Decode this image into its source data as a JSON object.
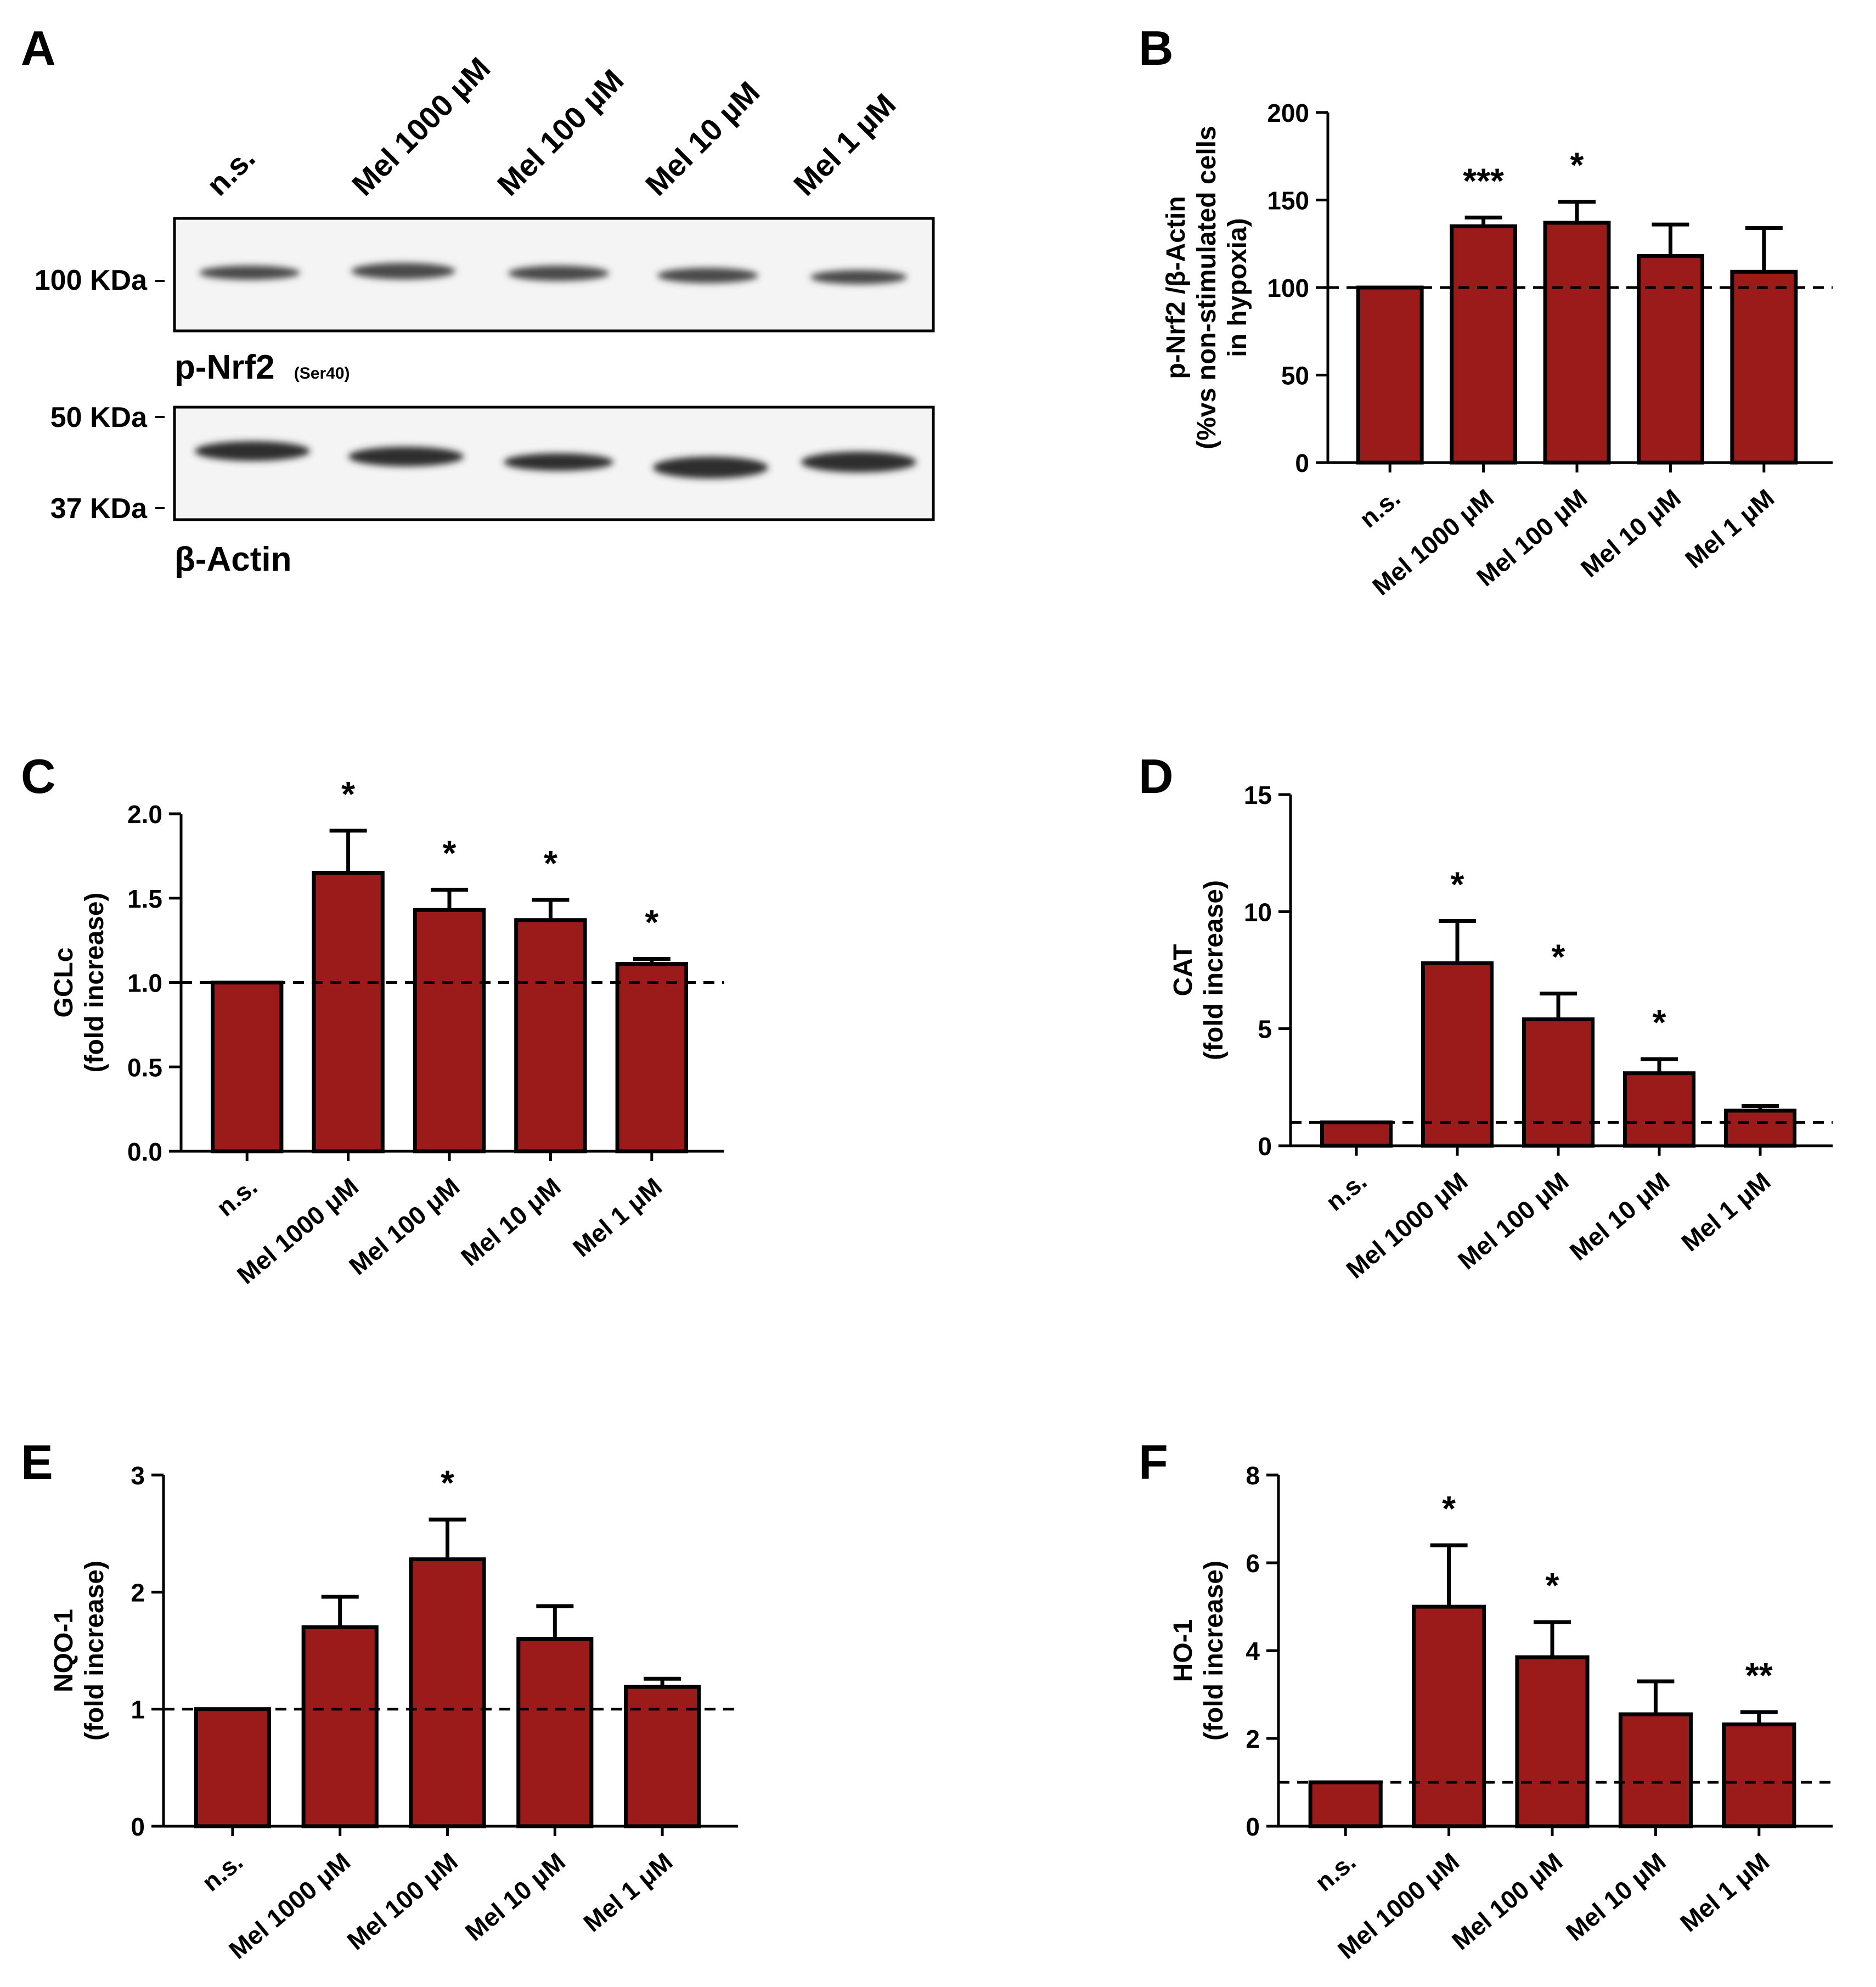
{
  "colors": {
    "bar": "#9b1b1b",
    "stroke": "#000000",
    "blot_bg": "#f4f4f4",
    "band": "#3a3a3a"
  },
  "panel_a": {
    "letter": "A",
    "lanes": [
      "n.s.",
      "Mel 1000 µM",
      "Mel 100 µM",
      "Mel 10 µM",
      "Mel 1 µM"
    ],
    "blot1": {
      "marker": "100 KDa",
      "protein": "p-Nrf2",
      "site": "(Ser40)"
    },
    "blot2": {
      "marker_top": "50 KDa",
      "marker_bottom": "37 KDa",
      "protein": "β-Actin"
    }
  },
  "chart_data": [
    {
      "id": "B",
      "type": "bar",
      "letter": "B",
      "categories": [
        "n.s.",
        "Mel 1000 μM",
        "Mel 100 μM",
        "Mel 10 μM",
        "Mel 1 μM"
      ],
      "values": [
        100,
        135,
        137,
        118,
        109
      ],
      "errors": [
        0,
        5,
        12,
        18,
        25
      ],
      "significance": [
        "",
        "***",
        "*",
        "",
        ""
      ],
      "ylabel": [
        "p-Nrf2 /β-Actin",
        "(%vs non-stimulated cells",
        "in hypoxia)"
      ],
      "ylim": [
        0,
        200
      ],
      "ticks": [
        0,
        50,
        100,
        150,
        200
      ],
      "tick_labels": [
        "0",
        "50",
        "100",
        "150",
        "200"
      ],
      "baseline": 100
    },
    {
      "id": "C",
      "type": "bar",
      "letter": "C",
      "categories": [
        "n.s.",
        "Mel 1000 μM",
        "Mel 100 μM",
        "Mel 10 μM",
        "Mel 1 μM"
      ],
      "values": [
        1.0,
        1.65,
        1.43,
        1.37,
        1.11
      ],
      "errors": [
        0,
        0.25,
        0.12,
        0.12,
        0.03
      ],
      "significance": [
        "",
        "*",
        "*",
        "*",
        "*"
      ],
      "ylabel": [
        "GCLc",
        "(fold increase)"
      ],
      "ylim": [
        0,
        2.0
      ],
      "ticks": [
        0,
        0.5,
        1.0,
        1.5,
        2.0
      ],
      "tick_labels": [
        "0.0",
        "0.5",
        "1.0",
        "1.5",
        "2.0"
      ],
      "baseline": 1.0
    },
    {
      "id": "D",
      "type": "bar",
      "letter": "D",
      "categories": [
        "n.s.",
        "Mel 1000 μM",
        "Mel 100 μM",
        "Mel 10 μM",
        "Mel 1 μM"
      ],
      "values": [
        1.0,
        7.8,
        5.4,
        3.1,
        1.5
      ],
      "errors": [
        0,
        1.8,
        1.1,
        0.6,
        0.2
      ],
      "significance": [
        "",
        "*",
        "*",
        "*",
        ""
      ],
      "ylabel": [
        "CAT",
        "(fold increase)"
      ],
      "ylim": [
        0,
        15
      ],
      "ticks": [
        0,
        5,
        10,
        15
      ],
      "tick_labels": [
        "0",
        "5",
        "10",
        "15"
      ],
      "baseline": 1.0
    },
    {
      "id": "E",
      "type": "bar",
      "letter": "E",
      "categories": [
        "n.s.",
        "Mel 1000 μM",
        "Mel 100 μM",
        "Mel 10 μM",
        "Mel 1 μM"
      ],
      "values": [
        1.0,
        1.7,
        2.28,
        1.6,
        1.19
      ],
      "errors": [
        0,
        0.26,
        0.34,
        0.28,
        0.07
      ],
      "significance": [
        "",
        "",
        "*",
        "",
        ""
      ],
      "ylabel": [
        "NQO-1",
        "(fold increase)"
      ],
      "ylim": [
        0,
        3
      ],
      "ticks": [
        0,
        1,
        2,
        3
      ],
      "tick_labels": [
        "0",
        "1",
        "2",
        "3"
      ],
      "baseline": 1.0
    },
    {
      "id": "F",
      "type": "bar",
      "letter": "F",
      "categories": [
        "n.s.",
        "Mel 1000 μM",
        "Mel 100 μM",
        "Mel 10 μM",
        "Mel 1 μM"
      ],
      "values": [
        1.0,
        5.0,
        3.85,
        2.55,
        2.32
      ],
      "errors": [
        0,
        1.4,
        0.8,
        0.75,
        0.28
      ],
      "significance": [
        "",
        "*",
        "*",
        "",
        "**"
      ],
      "ylabel": [
        "HO-1",
        "(fold increase)"
      ],
      "ylim": [
        0,
        8
      ],
      "ticks": [
        0,
        2,
        4,
        6,
        8
      ],
      "tick_labels": [
        "0",
        "2",
        "4",
        "6",
        "8"
      ],
      "baseline": 1.0
    }
  ]
}
